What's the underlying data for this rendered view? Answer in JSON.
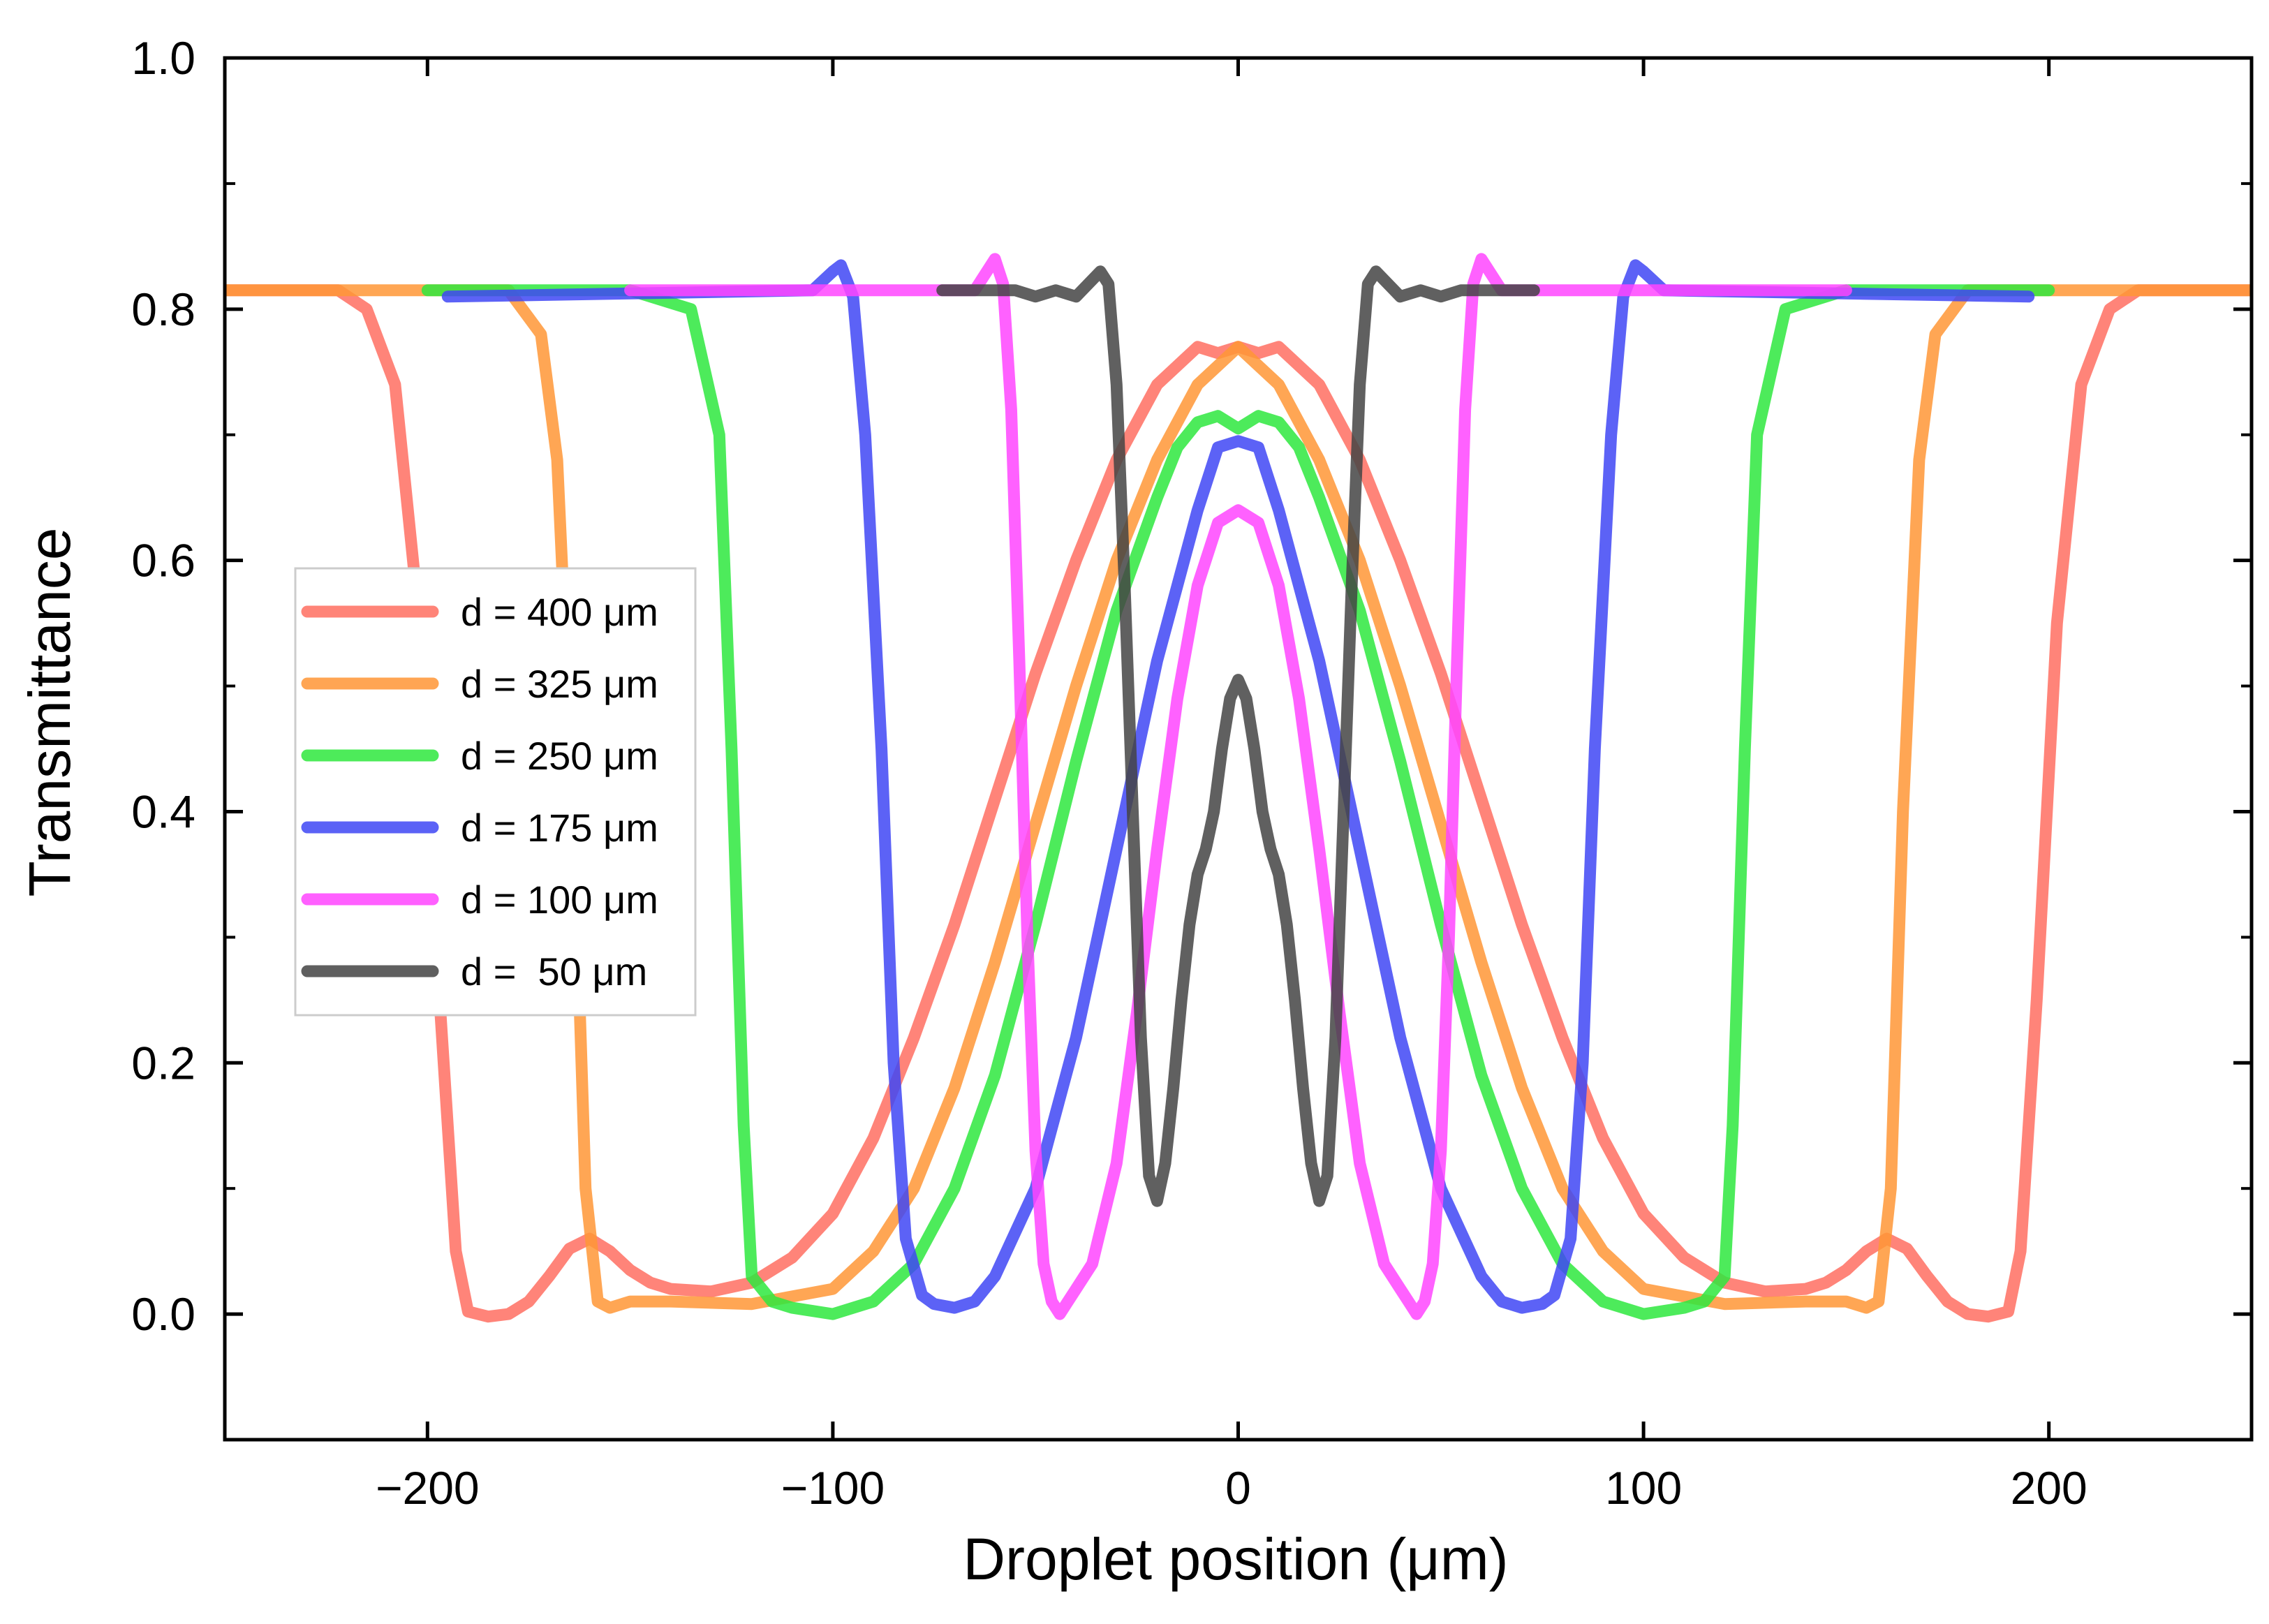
{
  "chart_data": {
    "type": "line",
    "title": "",
    "xlabel": "Droplet position (μm)",
    "ylabel": "Transmittance",
    "xlim": [
      -250,
      250
    ],
    "ylim": [
      -0.1,
      1.0
    ],
    "xticks": [
      -200,
      -100,
      0,
      100,
      200
    ],
    "xtick_labels": [
      "−200",
      "−100",
      "0",
      "100",
      "200"
    ],
    "yticks": [
      0.0,
      0.2,
      0.4,
      0.6,
      0.8,
      1.0
    ],
    "ytick_labels": [
      "0.0",
      "0.2",
      "0.4",
      "0.6",
      "0.8",
      "1.0"
    ],
    "legend_position": "center-left",
    "series": [
      {
        "name": "d = 400 μm",
        "color": "#FF6F61",
        "x": [
          -250,
          -222,
          -215,
          -208,
          -202,
          -197,
          -193,
          -190,
          -185,
          -180,
          -175,
          -170,
          -165,
          -160,
          -155,
          -150,
          -145,
          -140,
          -130,
          -120,
          -110,
          -100,
          -90,
          -80,
          -70,
          -60,
          -50,
          -40,
          -30,
          -20,
          -10,
          -5,
          0,
          5,
          10,
          20,
          30,
          40,
          50,
          60,
          70,
          80,
          90,
          100,
          110,
          120,
          130,
          140,
          145,
          150,
          155,
          160,
          165,
          170,
          175,
          180,
          185,
          190,
          193,
          197,
          202,
          208,
          215,
          222,
          250
        ],
        "y": [
          0.815,
          0.815,
          0.8,
          0.74,
          0.55,
          0.25,
          0.05,
          0.002,
          -0.002,
          0.0,
          0.01,
          0.03,
          0.052,
          0.06,
          0.05,
          0.035,
          0.025,
          0.02,
          0.018,
          0.025,
          0.045,
          0.08,
          0.14,
          0.22,
          0.31,
          0.41,
          0.51,
          0.6,
          0.68,
          0.74,
          0.77,
          0.765,
          0.77,
          0.765,
          0.77,
          0.74,
          0.68,
          0.6,
          0.51,
          0.41,
          0.31,
          0.22,
          0.14,
          0.08,
          0.045,
          0.025,
          0.018,
          0.02,
          0.025,
          0.035,
          0.05,
          0.06,
          0.052,
          0.03,
          0.01,
          0.0,
          -0.002,
          0.002,
          0.05,
          0.25,
          0.55,
          0.74,
          0.8,
          0.815,
          0.815
        ]
      },
      {
        "name": "d = 325 μm",
        "color": "#FF9636",
        "x": [
          -250,
          -180,
          -172,
          -168,
          -164,
          -161,
          -158,
          -155,
          -150,
          -140,
          -120,
          -100,
          -90,
          -80,
          -70,
          -60,
          -50,
          -40,
          -30,
          -20,
          -10,
          0,
          10,
          20,
          30,
          40,
          50,
          60,
          70,
          80,
          90,
          100,
          120,
          140,
          150,
          155,
          158,
          161,
          164,
          168,
          172,
          180,
          250
        ],
        "y": [
          0.815,
          0.815,
          0.78,
          0.68,
          0.4,
          0.1,
          0.01,
          0.005,
          0.01,
          0.01,
          0.008,
          0.02,
          0.05,
          0.1,
          0.18,
          0.28,
          0.39,
          0.5,
          0.6,
          0.68,
          0.74,
          0.77,
          0.74,
          0.68,
          0.6,
          0.5,
          0.39,
          0.28,
          0.18,
          0.1,
          0.05,
          0.02,
          0.008,
          0.01,
          0.01,
          0.005,
          0.01,
          0.1,
          0.4,
          0.68,
          0.78,
          0.815,
          0.815
        ]
      },
      {
        "name": "d = 250 μm",
        "color": "#2EE83E",
        "x": [
          -200,
          -150,
          -135,
          -128,
          -125,
          -122,
          -120,
          -115,
          -110,
          -100,
          -90,
          -80,
          -70,
          -60,
          -50,
          -40,
          -30,
          -20,
          -15,
          -10,
          -5,
          0,
          5,
          10,
          15,
          20,
          30,
          40,
          50,
          60,
          70,
          80,
          90,
          100,
          110,
          115,
          120,
          122,
          125,
          128,
          135,
          150,
          200
        ],
        "y": [
          0.815,
          0.815,
          0.8,
          0.7,
          0.45,
          0.15,
          0.03,
          0.01,
          0.005,
          0.0,
          0.01,
          0.04,
          0.1,
          0.19,
          0.31,
          0.44,
          0.56,
          0.65,
          0.69,
          0.71,
          0.715,
          0.705,
          0.715,
          0.71,
          0.69,
          0.65,
          0.56,
          0.44,
          0.31,
          0.19,
          0.1,
          0.04,
          0.01,
          0.0,
          0.005,
          0.01,
          0.03,
          0.15,
          0.45,
          0.7,
          0.8,
          0.815,
          0.815
        ]
      },
      {
        "name": "d = 175 μm",
        "color": "#3F47F5",
        "x": [
          -195,
          -105,
          -100,
          -98,
          -95,
          -92,
          -88,
          -85,
          -82,
          -78,
          -75,
          -70,
          -65,
          -60,
          -50,
          -40,
          -30,
          -20,
          -10,
          -5,
          0,
          5,
          10,
          20,
          30,
          40,
          50,
          60,
          65,
          70,
          75,
          78,
          82,
          85,
          88,
          92,
          95,
          98,
          100,
          105,
          195
        ],
        "y": [
          0.81,
          0.815,
          0.83,
          0.835,
          0.81,
          0.7,
          0.45,
          0.2,
          0.06,
          0.015,
          0.008,
          0.005,
          0.01,
          0.03,
          0.1,
          0.22,
          0.37,
          0.52,
          0.64,
          0.69,
          0.695,
          0.69,
          0.64,
          0.52,
          0.37,
          0.22,
          0.1,
          0.03,
          0.01,
          0.005,
          0.008,
          0.015,
          0.06,
          0.2,
          0.45,
          0.7,
          0.81,
          0.835,
          0.83,
          0.815,
          0.81
        ]
      },
      {
        "name": "d = 100 μm",
        "color": "#FF45FF",
        "x": [
          -150,
          -65,
          -60,
          -58,
          -56,
          -54,
          -52,
          -50,
          -48,
          -46,
          -44,
          -42,
          -40,
          -36,
          -30,
          -25,
          -20,
          -15,
          -10,
          -5,
          0,
          5,
          10,
          15,
          20,
          25,
          30,
          36,
          40,
          42,
          44,
          46,
          48,
          50,
          52,
          54,
          56,
          58,
          60,
          65,
          150
        ],
        "y": [
          0.815,
          0.815,
          0.84,
          0.82,
          0.72,
          0.52,
          0.3,
          0.13,
          0.04,
          0.01,
          0.0,
          0.01,
          0.02,
          0.04,
          0.12,
          0.24,
          0.37,
          0.49,
          0.58,
          0.63,
          0.64,
          0.63,
          0.58,
          0.49,
          0.37,
          0.24,
          0.12,
          0.04,
          0.02,
          0.01,
          0.0,
          0.01,
          0.04,
          0.13,
          0.3,
          0.52,
          0.72,
          0.82,
          0.84,
          0.815,
          0.815
        ]
      },
      {
        "name": "d =  50 μm",
        "color": "#444444",
        "x": [
          -73,
          -55,
          -50,
          -45,
          -40,
          -37,
          -34,
          -32,
          -30,
          -28,
          -26,
          -24,
          -22,
          -20,
          -18,
          -16,
          -14,
          -12,
          -10,
          -8,
          -6,
          -4,
          -2,
          0,
          2,
          4,
          6,
          8,
          10,
          12,
          14,
          16,
          18,
          20,
          22,
          24,
          26,
          28,
          30,
          32,
          34,
          37,
          40,
          45,
          50,
          55,
          73
        ],
        "y": [
          0.815,
          0.815,
          0.81,
          0.815,
          0.81,
          0.82,
          0.83,
          0.82,
          0.74,
          0.58,
          0.4,
          0.22,
          0.11,
          0.09,
          0.12,
          0.18,
          0.25,
          0.31,
          0.35,
          0.37,
          0.4,
          0.45,
          0.49,
          0.505,
          0.49,
          0.45,
          0.4,
          0.37,
          0.35,
          0.31,
          0.25,
          0.18,
          0.12,
          0.09,
          0.11,
          0.22,
          0.4,
          0.58,
          0.74,
          0.82,
          0.83,
          0.82,
          0.81,
          0.815,
          0.81,
          0.815,
          0.815
        ]
      }
    ]
  }
}
